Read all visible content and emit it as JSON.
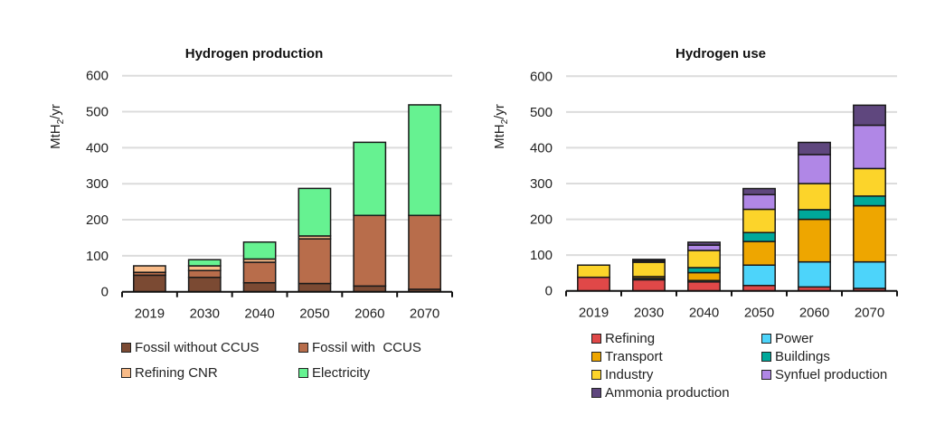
{
  "chart_data": [
    {
      "type": "bar",
      "stacked": true,
      "title": "Hydrogen production",
      "xlabel": "",
      "ylabel": "MtH2/yr",
      "ylabel_main": "MtH",
      "ylabel_sub": "2",
      "ylabel_tail": "/yr",
      "ylim": [
        0,
        600
      ],
      "yticks": [
        "0",
        "100",
        "200",
        "300",
        "400",
        "500",
        "600"
      ],
      "ytick_values": [
        0,
        100,
        200,
        300,
        400,
        500,
        600
      ],
      "grid": true,
      "legend_position": "bottom",
      "categories": [
        "2019",
        "2030",
        "2040",
        "2050",
        "2060",
        "2070"
      ],
      "series": [
        {
          "name": "Fossil without CCUS",
          "color": "#7b4a33",
          "values": [
            46,
            40,
            25,
            23,
            16,
            7
          ]
        },
        {
          "name": "Fossil with  CCUS",
          "color": "#b86d4b",
          "values": [
            8,
            19,
            57,
            124,
            196,
            205
          ]
        },
        {
          "name": "Refining CNR",
          "color": "#f8bb88",
          "values": [
            18,
            13,
            9,
            8,
            0,
            0
          ]
        },
        {
          "name": "Electricity",
          "color": "#66f291",
          "values": [
            0,
            17,
            47,
            132,
            203,
            307
          ]
        }
      ]
    },
    {
      "type": "bar",
      "stacked": true,
      "title": "Hydrogen use",
      "xlabel": "",
      "ylabel": "MtH2/yr",
      "ylabel_main": "MtH",
      "ylabel_sub": "2",
      "ylabel_tail": "/yr",
      "ylim": [
        0,
        600
      ],
      "yticks": [
        "0",
        "100",
        "200",
        "300",
        "400",
        "500",
        "600"
      ],
      "ytick_values": [
        0,
        100,
        200,
        300,
        400,
        500,
        600
      ],
      "grid": true,
      "legend_position": "bottom",
      "categories": [
        "2019",
        "2030",
        "2040",
        "2050",
        "2060",
        "2070"
      ],
      "series": [
        {
          "name": "Refining",
          "color": "#e04848",
          "values": [
            38,
            31,
            25,
            15,
            11,
            7
          ]
        },
        {
          "name": "Power",
          "color": "#4dd4fa",
          "values": [
            0,
            4,
            4,
            57,
            70,
            74
          ]
        },
        {
          "name": "Transport",
          "color": "#eea600",
          "values": [
            0,
            5,
            22,
            66,
            119,
            157
          ]
        },
        {
          "name": "Buildings",
          "color": "#00a89a",
          "values": [
            0,
            0,
            14,
            25,
            27,
            27
          ]
        },
        {
          "name": "Industry",
          "color": "#fcd42a",
          "values": [
            34,
            40,
            48,
            65,
            73,
            77
          ]
        },
        {
          "name": "Synfuel production",
          "color": "#b087e6",
          "values": [
            0,
            4,
            15,
            41,
            81,
            121
          ]
        },
        {
          "name": "Ammonia production",
          "color": "#5f477e",
          "values": [
            0,
            4,
            8,
            17,
            34,
            56
          ]
        }
      ]
    }
  ]
}
